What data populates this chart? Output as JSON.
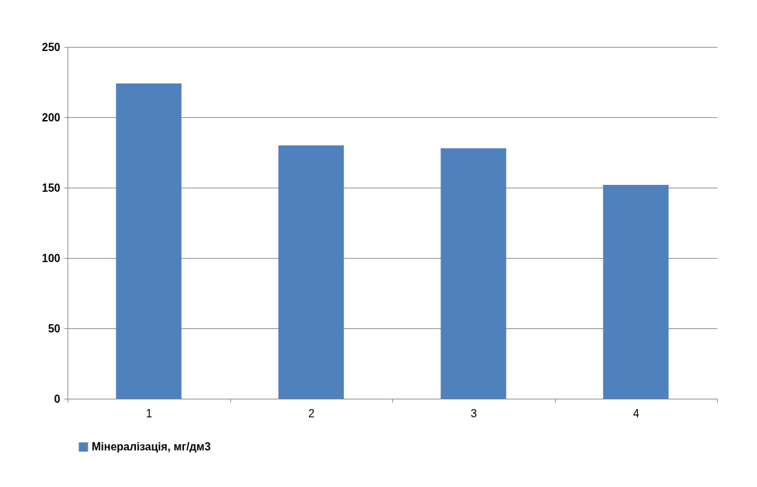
{
  "chart_data": {
    "type": "bar",
    "categories": [
      "1",
      "2",
      "3",
      "4"
    ],
    "series": [
      {
        "name": "Мінералізація, мг/дм3",
        "color": "#4f81bd",
        "values": [
          224,
          180,
          178,
          152
        ]
      }
    ],
    "ylim": [
      0,
      250
    ],
    "yticks": [
      0,
      50,
      100,
      150,
      200,
      250
    ],
    "grid": "y",
    "legend": "bottom"
  }
}
